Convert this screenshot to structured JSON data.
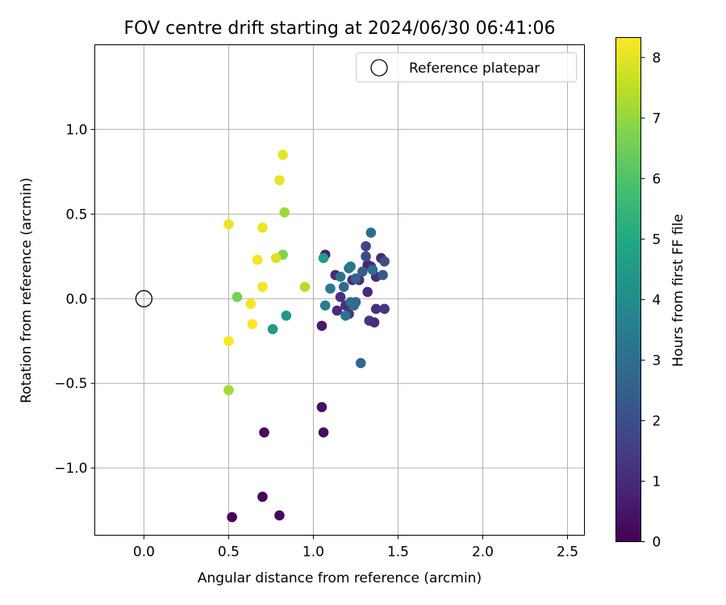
{
  "chart_data": {
    "type": "scatter",
    "title": "FOV centre drift starting at 2024/06/30 06:41:06",
    "xlabel": "Angular distance from reference (arcmin)",
    "ylabel": "Rotation from reference (arcmin)",
    "xlim": [
      -0.29,
      2.6
    ],
    "ylim": [
      -1.397,
      1.5
    ],
    "xticks": [
      0.0,
      0.5,
      1.0,
      1.5,
      2.0,
      2.5
    ],
    "xtick_labels": [
      "0.0",
      "0.5",
      "1.0",
      "1.5",
      "2.0",
      "2.5"
    ],
    "yticks": [
      -1.0,
      -0.5,
      0.0,
      0.5,
      1.0
    ],
    "ytick_labels": [
      "−1.0",
      "−0.5",
      "0.0",
      "0.5",
      "1.0"
    ],
    "grid": true,
    "legend": {
      "placement": "top-right",
      "entries": [
        "Reference platepar"
      ]
    },
    "reference_point": {
      "x": 0.0,
      "y": 0.0,
      "marker": "open-circle"
    },
    "colorbar": {
      "label": "Hours from first FF file",
      "range": [
        0,
        8.33
      ],
      "ticks": [
        0,
        1,
        2,
        3,
        4,
        5,
        6,
        7,
        8
      ],
      "tick_labels": [
        "0",
        "1",
        "2",
        "3",
        "4",
        "5",
        "6",
        "7",
        "8"
      ],
      "colormap": "viridis"
    },
    "points": [
      {
        "x": 0.52,
        "y": -1.29,
        "c": 0.1
      },
      {
        "x": 0.7,
        "y": -1.17,
        "c": 0.15
      },
      {
        "x": 0.8,
        "y": -1.28,
        "c": 0.2
      },
      {
        "x": 0.71,
        "y": -0.79,
        "c": 0.25
      },
      {
        "x": 1.06,
        "y": -0.79,
        "c": 0.3
      },
      {
        "x": 1.05,
        "y": -0.64,
        "c": 0.35
      },
      {
        "x": 1.05,
        "y": -0.16,
        "c": 0.6
      },
      {
        "x": 1.07,
        "y": 0.26,
        "c": 0.7
      },
      {
        "x": 1.13,
        "y": 0.14,
        "c": 1.0
      },
      {
        "x": 1.14,
        "y": -0.07,
        "c": 1.1
      },
      {
        "x": 1.16,
        "y": 0.01,
        "c": 1.2
      },
      {
        "x": 1.19,
        "y": -0.04,
        "c": 1.2
      },
      {
        "x": 1.21,
        "y": -0.09,
        "c": 1.3
      },
      {
        "x": 1.23,
        "y": 0.11,
        "c": 1.1
      },
      {
        "x": 1.27,
        "y": 0.11,
        "c": 1.2
      },
      {
        "x": 1.32,
        "y": 0.2,
        "c": 0.9
      },
      {
        "x": 1.34,
        "y": 0.19,
        "c": 1.0
      },
      {
        "x": 1.37,
        "y": 0.13,
        "c": 1.1
      },
      {
        "x": 1.4,
        "y": 0.24,
        "c": 0.9
      },
      {
        "x": 1.32,
        "y": 0.04,
        "c": 1.0
      },
      {
        "x": 1.33,
        "y": -0.13,
        "c": 1.3
      },
      {
        "x": 1.36,
        "y": -0.14,
        "c": 1.1
      },
      {
        "x": 1.37,
        "y": -0.06,
        "c": 1.2
      },
      {
        "x": 1.42,
        "y": -0.06,
        "c": 1.3
      },
      {
        "x": 1.31,
        "y": 0.31,
        "c": 1.7
      },
      {
        "x": 1.31,
        "y": 0.25,
        "c": 1.9
      },
      {
        "x": 1.42,
        "y": 0.22,
        "c": 2.0
      },
      {
        "x": 1.41,
        "y": 0.14,
        "c": 2.3
      },
      {
        "x": 1.29,
        "y": 0.16,
        "c": 2.5
      },
      {
        "x": 1.25,
        "y": 0.12,
        "c": 2.6
      },
      {
        "x": 1.25,
        "y": -0.02,
        "c": 2.7
      },
      {
        "x": 1.24,
        "y": -0.04,
        "c": 2.9
      },
      {
        "x": 1.22,
        "y": -0.02,
        "c": 3.0
      },
      {
        "x": 1.19,
        "y": -0.1,
        "c": 3.1
      },
      {
        "x": 1.18,
        "y": 0.07,
        "c": 2.8
      },
      {
        "x": 1.16,
        "y": 0.13,
        "c": 3.2
      },
      {
        "x": 1.21,
        "y": 0.18,
        "c": 3.1
      },
      {
        "x": 1.22,
        "y": 0.19,
        "c": 3.4
      },
      {
        "x": 1.34,
        "y": 0.39,
        "c": 2.9
      },
      {
        "x": 1.35,
        "y": 0.17,
        "c": 3.0
      },
      {
        "x": 1.28,
        "y": -0.38,
        "c": 2.8
      },
      {
        "x": 1.1,
        "y": 0.06,
        "c": 3.3
      },
      {
        "x": 1.07,
        "y": -0.04,
        "c": 3.5
      },
      {
        "x": 1.06,
        "y": 0.24,
        "c": 4.6
      },
      {
        "x": 0.84,
        "y": -0.1,
        "c": 4.4
      },
      {
        "x": 0.76,
        "y": -0.18,
        "c": 4.5
      },
      {
        "x": 0.55,
        "y": 0.01,
        "c": 6.6
      },
      {
        "x": 0.82,
        "y": 0.26,
        "c": 6.8
      },
      {
        "x": 0.83,
        "y": 0.51,
        "c": 7.1
      },
      {
        "x": 0.5,
        "y": -0.54,
        "c": 7.2
      },
      {
        "x": 0.95,
        "y": 0.07,
        "c": 7.4
      },
      {
        "x": 0.78,
        "y": 0.24,
        "c": 7.9
      },
      {
        "x": 0.82,
        "y": 0.85,
        "c": 8.0
      },
      {
        "x": 0.8,
        "y": 0.7,
        "c": 8.05
      },
      {
        "x": 0.7,
        "y": 0.42,
        "c": 8.1
      },
      {
        "x": 0.5,
        "y": 0.44,
        "c": 8.15
      },
      {
        "x": 0.67,
        "y": 0.23,
        "c": 8.2
      },
      {
        "x": 0.7,
        "y": 0.07,
        "c": 8.2
      },
      {
        "x": 0.63,
        "y": -0.03,
        "c": 8.25
      },
      {
        "x": 0.64,
        "y": -0.15,
        "c": 8.3
      },
      {
        "x": 0.5,
        "y": -0.25,
        "c": 8.3
      }
    ]
  }
}
